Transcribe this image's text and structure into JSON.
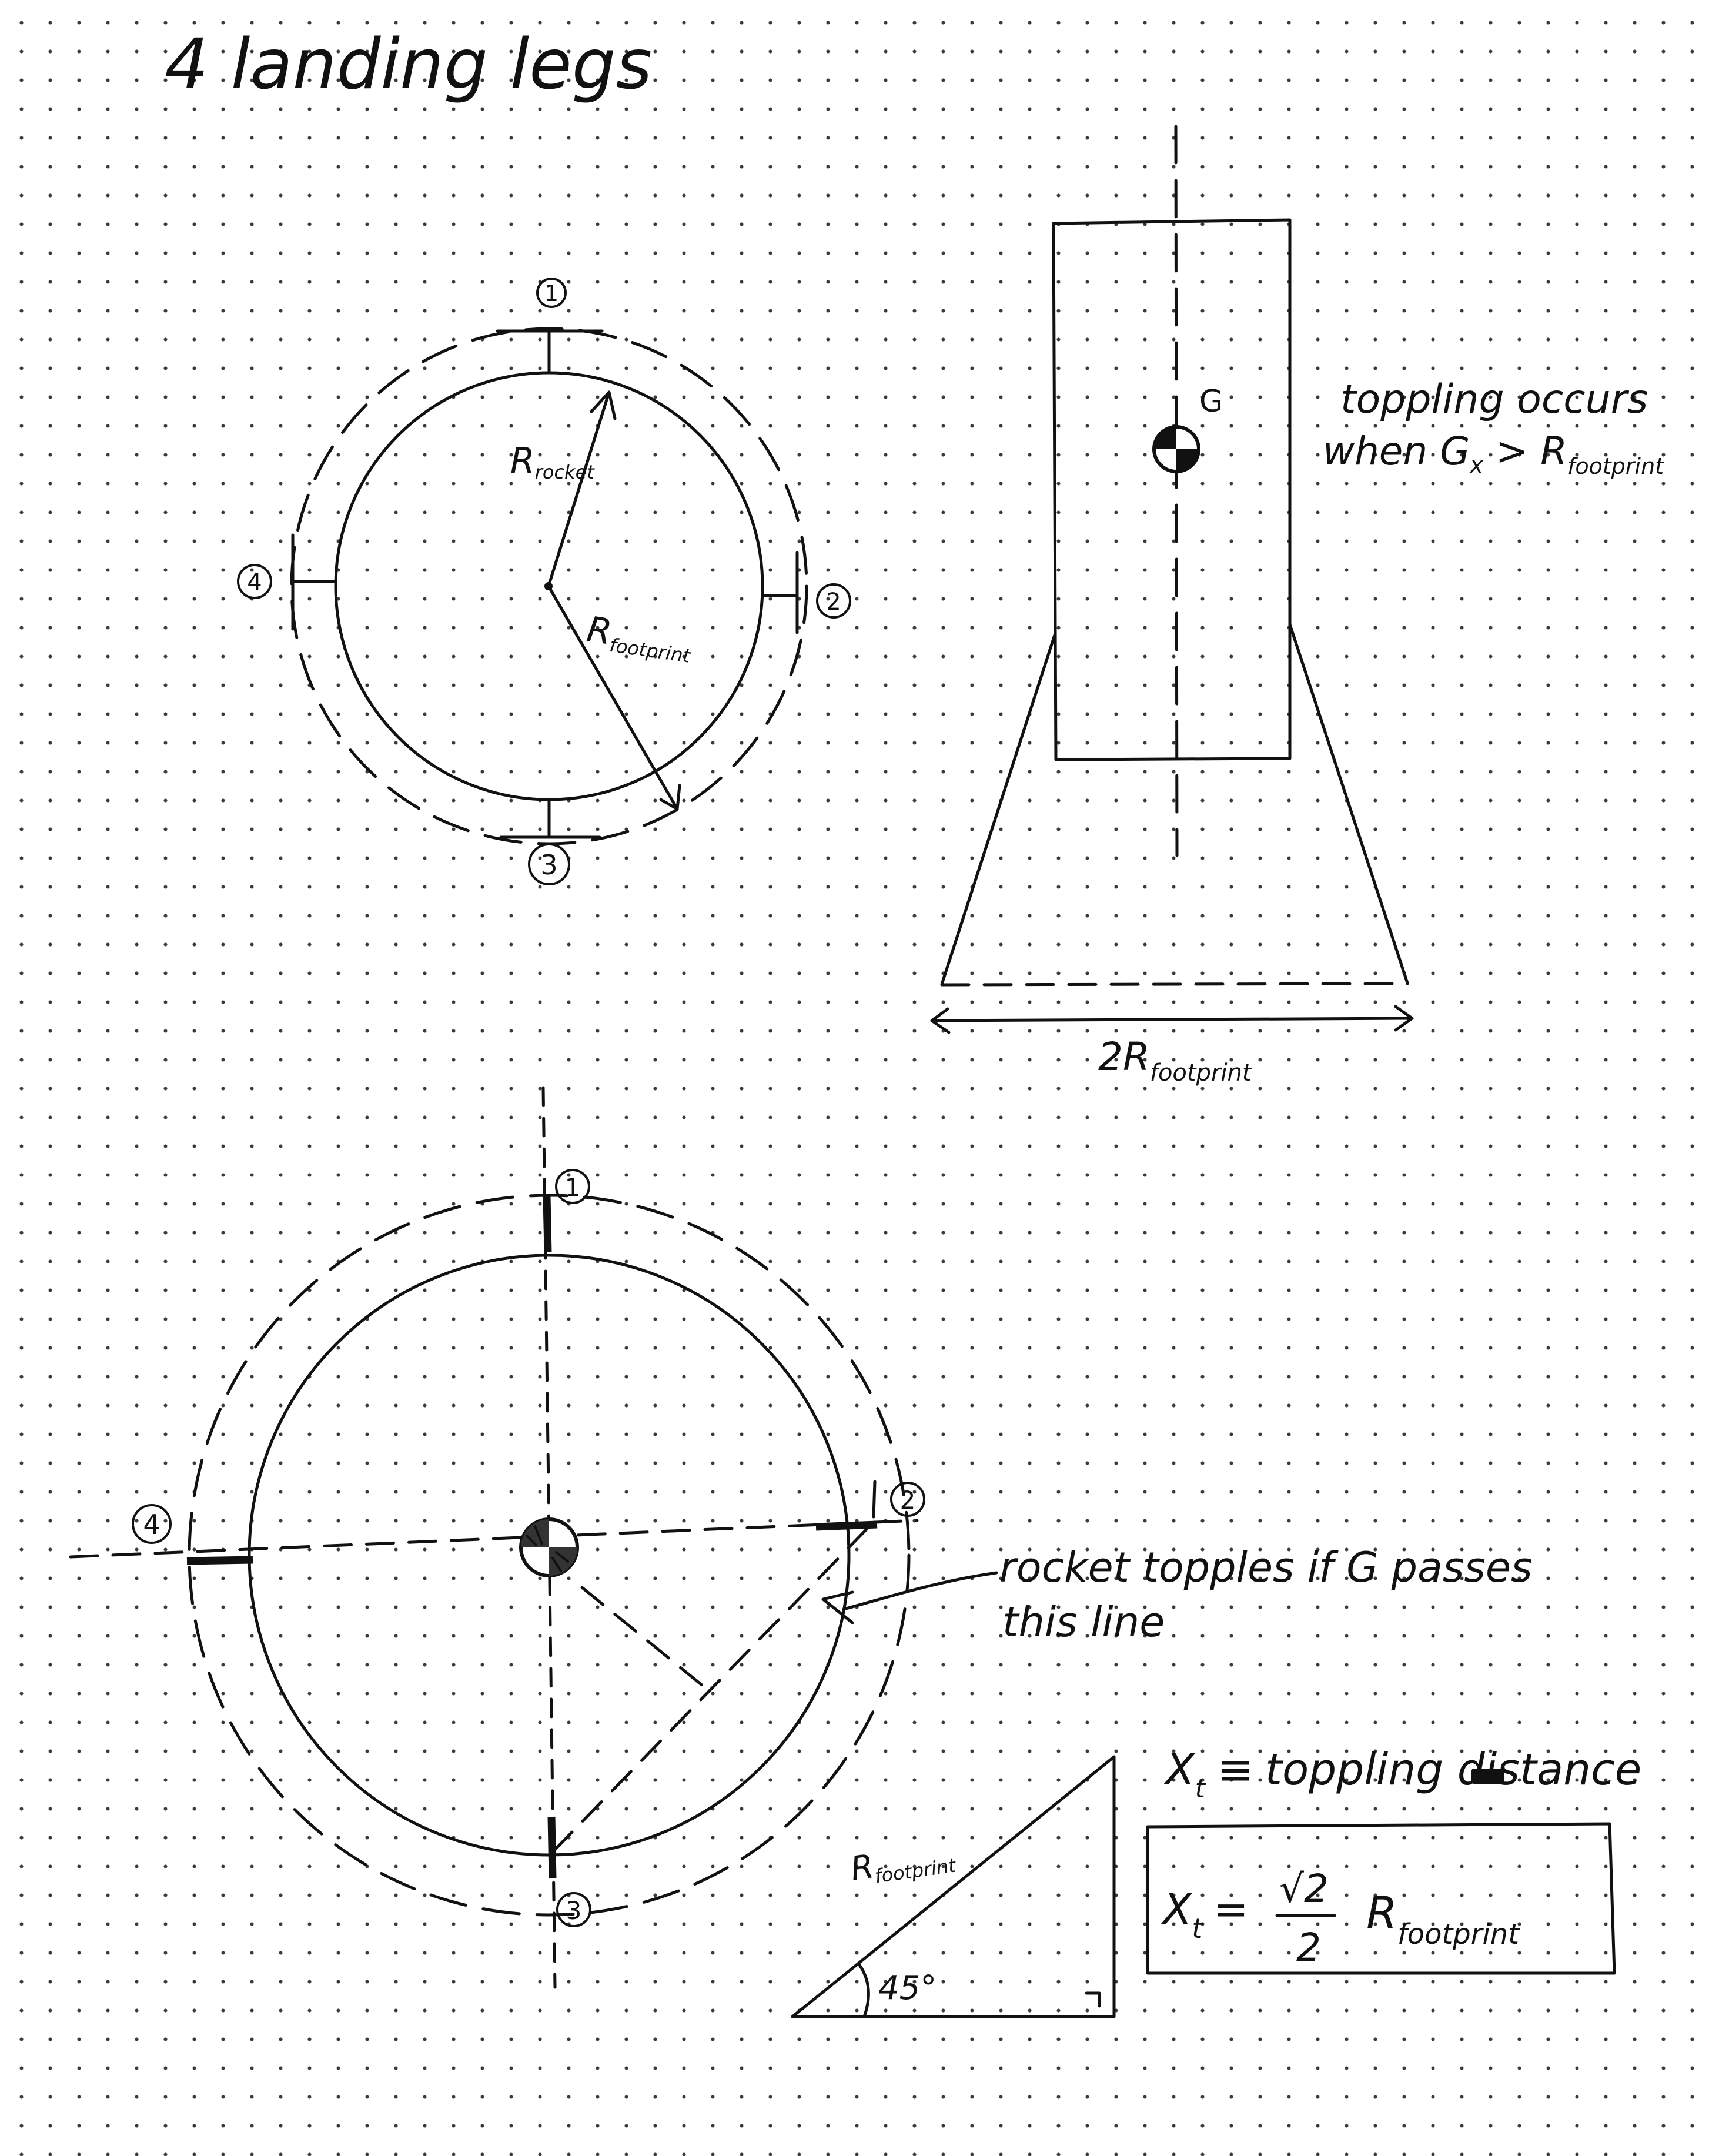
{
  "page": {
    "title": "4 landing legs"
  },
  "top_view": {
    "r_rocket_label": "R",
    "r_rocket_sub": "rocket",
    "r_footprint_label": "R",
    "r_footprint_sub": "footprint",
    "legs": [
      "1",
      "2",
      "3",
      "4"
    ]
  },
  "side_view": {
    "cg_label": "G",
    "note_line1": "toppling occurs",
    "note_line2_pre": "when G",
    "note_line2_sub": "x",
    "note_line2_mid": " > R",
    "note_line2_sub2": "footprint",
    "width_label": "2R",
    "width_sub": "footprint"
  },
  "bottom_view": {
    "legs": [
      "1",
      "2",
      "3",
      "4"
    ],
    "note_line1": "rocket topples if G passes",
    "note_line2": "this line"
  },
  "triangle": {
    "hyp_label": "R",
    "hyp_sub": "footprint",
    "angle_label": "45°"
  },
  "definition": {
    "x_label": "X",
    "x_sub": "t",
    "equiv": "≡",
    "text": "toppling distance"
  },
  "formula": {
    "lhs": "X",
    "lhs_sub": "t",
    "eq": "=",
    "numerator": "√2",
    "denominator": "2",
    "r": "R",
    "r_sub": "footprint"
  }
}
